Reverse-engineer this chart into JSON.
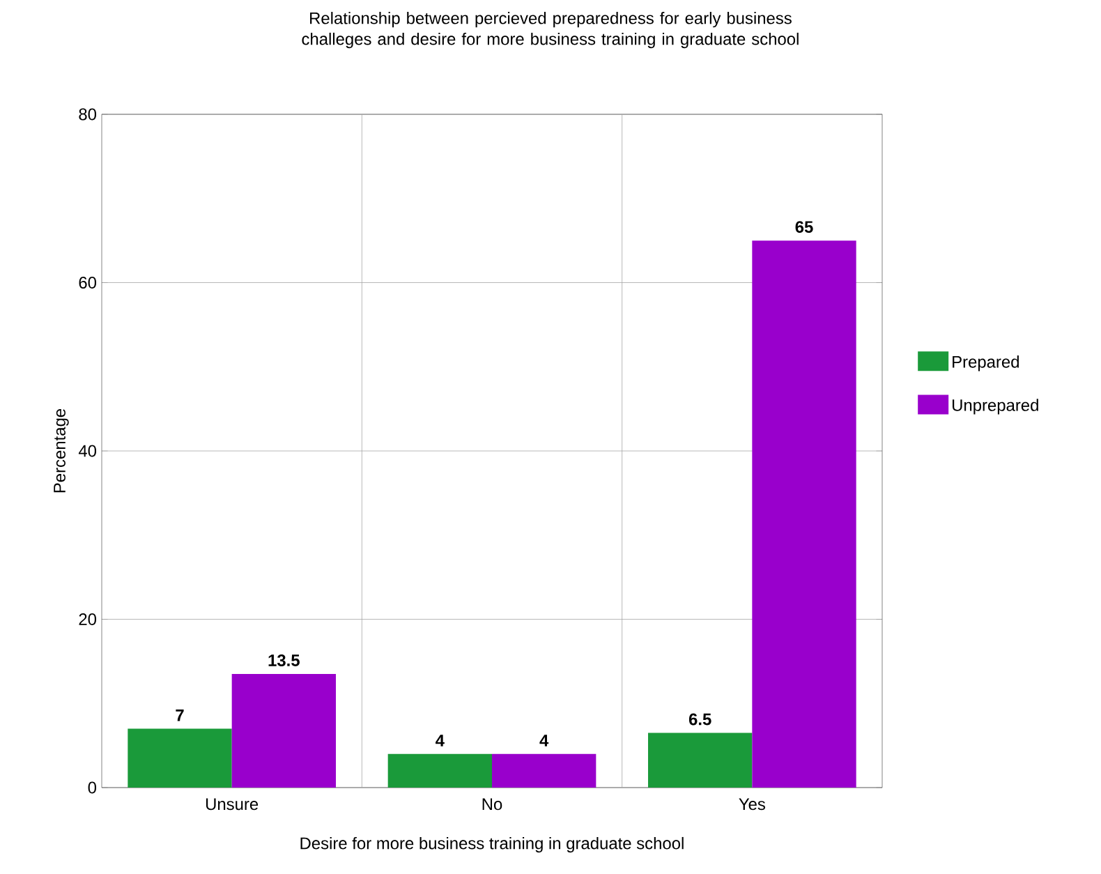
{
  "chart_data": {
    "type": "bar",
    "title": "Relationship between percieved preparedness for early business challeges and desire for more business training in graduate school",
    "xlabel": "Desire for more business training in graduate school",
    "ylabel": "Percentage",
    "categories": [
      "Unsure",
      "No",
      "Yes"
    ],
    "series": [
      {
        "name": "Prepared",
        "color": "#1a9a3a",
        "values": [
          7,
          4,
          6.5
        ]
      },
      {
        "name": "Unprepared",
        "color": "#9900cc",
        "values": [
          13.5,
          4,
          65
        ]
      }
    ],
    "ylim": [
      0,
      80
    ],
    "yticks": [
      0,
      20,
      40,
      60,
      80
    ],
    "grid": true,
    "legend": "right",
    "data_labels": true
  }
}
